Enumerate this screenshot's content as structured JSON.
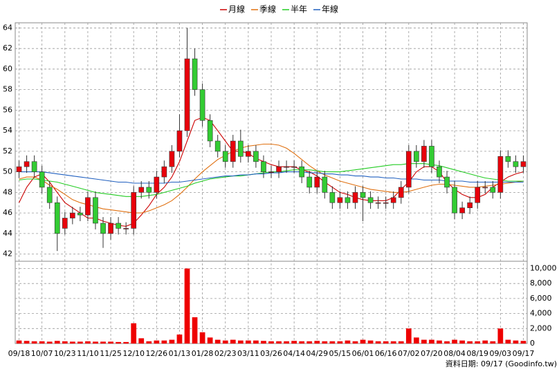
{
  "chart_data": {
    "type": "candlestick",
    "categories": [
      "09/18",
      null,
      null,
      "10/07",
      null,
      null,
      "10/23",
      null,
      null,
      "11/10",
      null,
      null,
      "11/25",
      null,
      null,
      "12/10",
      null,
      null,
      "12/26",
      null,
      null,
      "01/13",
      null,
      null,
      "01/28",
      null,
      null,
      "02/23",
      null,
      null,
      "03/11",
      null,
      null,
      "03/26",
      null,
      null,
      "04/14",
      null,
      null,
      "04/29",
      null,
      null,
      "05/15",
      null,
      null,
      "06/01",
      null,
      null,
      "06/16",
      null,
      null,
      "07/02",
      null,
      null,
      "07/20",
      null,
      null,
      "08/04",
      null,
      null,
      "08/19",
      null,
      null,
      "09/03",
      null,
      null,
      "09/17"
    ],
    "open": [
      50,
      50.5,
      51,
      50,
      48.5,
      47,
      44.5,
      45.5,
      46,
      45.8,
      47.5,
      45,
      44,
      45,
      44.5,
      44.5,
      48,
      48.5,
      48,
      49.5,
      50.5,
      52,
      54,
      61,
      58,
      55,
      53,
      52,
      51,
      53,
      51.5,
      52,
      51,
      50,
      50,
      50.5,
      50.5,
      50.5,
      49.5,
      48.5,
      49.5,
      48,
      47,
      47.5,
      47,
      48,
      47.5,
      47,
      47,
      47,
      47.5,
      48.5,
      52,
      51,
      52.5,
      50.5,
      49.5,
      48.5,
      46,
      46.5,
      47,
      48.5,
      48.5,
      48,
      51.5,
      51,
      50.5
    ],
    "high": [
      51.1,
      51.6,
      51.6,
      50.6,
      49.1,
      47.6,
      46.1,
      46.6,
      46.6,
      48.1,
      48.1,
      45.6,
      45.6,
      45.6,
      45.1,
      48.6,
      49.1,
      49.1,
      50.1,
      51.1,
      52.6,
      55.6,
      64,
      62,
      58.6,
      55.6,
      53.6,
      52.6,
      53.6,
      54.1,
      52.6,
      52.6,
      51.6,
      50.6,
      51.1,
      51.1,
      51.1,
      51.1,
      50.1,
      50.1,
      50.1,
      48.6,
      48.1,
      48.1,
      48.6,
      48.6,
      48.1,
      47.6,
      47.6,
      48.1,
      49.1,
      52.6,
      52.6,
      53.1,
      53.1,
      51.1,
      50.1,
      49.1,
      47.1,
      47.6,
      49.1,
      49.1,
      49.1,
      52.1,
      52.1,
      51.6,
      51.6
    ],
    "low": [
      49.4,
      49.9,
      49.4,
      47.9,
      46.4,
      42.3,
      43.9,
      44.9,
      45.2,
      45.2,
      44.4,
      42.6,
      43.4,
      43.9,
      43.9,
      43.9,
      47.4,
      47.4,
      47.4,
      48.9,
      49.9,
      51.4,
      53.4,
      57.4,
      54.4,
      52.4,
      51.4,
      50.4,
      50.4,
      50.9,
      50.9,
      50.4,
      49.4,
      49.4,
      49.4,
      49.9,
      49.9,
      48.9,
      47.9,
      47.9,
      47.4,
      46.4,
      46.4,
      46.4,
      46.4,
      45.2,
      46.4,
      46.4,
      46.4,
      46.4,
      46.9,
      47.9,
      50.4,
      50.4,
      49.9,
      48.9,
      47.9,
      45.4,
      45.4,
      45.9,
      46.4,
      47.9,
      47.4,
      47.4,
      50.4,
      49.9,
      49.9
    ],
    "close": [
      50.5,
      51,
      50,
      48.5,
      47,
      44,
      45.5,
      46,
      45.8,
      47.5,
      45,
      44,
      45,
      44.5,
      44.5,
      48,
      48.5,
      48,
      49.5,
      50.5,
      52,
      54,
      61,
      58,
      55,
      53,
      52,
      51,
      53,
      51.5,
      52,
      51,
      50,
      50,
      50.5,
      50.5,
      50.5,
      49.5,
      48.5,
      49.5,
      48,
      47,
      47.5,
      47,
      48,
      47.5,
      47,
      47,
      47,
      47.5,
      48.5,
      52,
      51,
      52.5,
      50.5,
      49.5,
      48.5,
      46,
      46.5,
      47,
      48.5,
      48.5,
      48,
      51.5,
      51,
      50.5,
      51
    ],
    "up_color": "#e8000b",
    "down_color": "#33cc33",
    "series": [
      {
        "name": "月線",
        "color": "#cc0000",
        "values": [
          47,
          48.5,
          49.5,
          49.8,
          49,
          48,
          47,
          46.5,
          46,
          45.5,
          45.5,
          45.2,
          45,
          44.8,
          44.7,
          45,
          45.8,
          46.7,
          47.8,
          48.5,
          49.5,
          51,
          53,
          55,
          55.3,
          55,
          54,
          53,
          52,
          52,
          51.8,
          51.3,
          51,
          50.7,
          50.5,
          50.5,
          50.5,
          50.2,
          50,
          49.6,
          49,
          48.5,
          48,
          47.8,
          47.5,
          47.3,
          47.2,
          47.2,
          47.2,
          47.5,
          48.3,
          49,
          50,
          50.5,
          50.5,
          50,
          49,
          48.3,
          47.8,
          47.5,
          47.5,
          47.8,
          48.5,
          49,
          49.5,
          49.8,
          50
        ]
      },
      {
        "name": "季線",
        "color": "#e07010",
        "values": [
          49.3,
          49.5,
          49.5,
          49.2,
          48.7,
          48.3,
          47.8,
          47.3,
          47,
          46.8,
          46.6,
          46.4,
          46.3,
          46.2,
          46.1,
          46,
          46,
          46.2,
          46.5,
          46.8,
          47.2,
          47.8,
          48.5,
          49.3,
          50,
          50.6,
          51.2,
          51.6,
          52,
          52.3,
          52.5,
          52.6,
          52.7,
          52.7,
          52.6,
          52.3,
          51.8,
          51.2,
          50.6,
          50.1,
          49.7,
          49.4,
          49.1,
          48.9,
          48.7,
          48.5,
          48.3,
          48.2,
          48.1,
          48,
          48,
          48.1,
          48.3,
          48.5,
          48.7,
          48.8,
          48.8,
          48.7,
          48.6,
          48.5,
          48.5,
          48.6,
          48.7,
          48.8,
          48.9,
          49,
          49.1
        ]
      },
      {
        "name": "半年",
        "color": "#22cc22",
        "values": [
          49.2,
          49.3,
          49.3,
          49.2,
          49.1,
          49,
          48.8,
          48.6,
          48.4,
          48.2,
          48,
          47.9,
          47.8,
          47.7,
          47.6,
          47.6,
          47.6,
          47.7,
          47.8,
          48,
          48.2,
          48.4,
          48.6,
          48.9,
          49.1,
          49.3,
          49.4,
          49.5,
          49.6,
          49.6,
          49.7,
          49.8,
          49.9,
          50,
          50,
          50.1,
          50.2,
          50.2,
          50.2,
          50.1,
          50,
          50,
          50,
          50.1,
          50.2,
          50.3,
          50.4,
          50.5,
          50.6,
          50.7,
          50.7,
          50.8,
          50.8,
          50.8,
          50.7,
          50.6,
          50.4,
          50.2,
          50,
          49.8,
          49.6,
          49.4,
          49.3,
          49.2,
          49.1,
          49.1,
          49.1
        ]
      },
      {
        "name": "年線",
        "color": "#1f5fbf",
        "values": [
          50,
          50,
          50,
          50,
          49.9,
          49.8,
          49.7,
          49.6,
          49.5,
          49.4,
          49.3,
          49.2,
          49.1,
          49,
          49,
          48.9,
          48.9,
          48.9,
          48.9,
          48.9,
          49,
          49,
          49.1,
          49.2,
          49.3,
          49.4,
          49.5,
          49.6,
          49.6,
          49.7,
          49.7,
          49.8,
          49.8,
          49.9,
          49.9,
          50,
          50,
          50,
          49.9,
          49.9,
          49.8,
          49.8,
          49.7,
          49.7,
          49.6,
          49.6,
          49.5,
          49.5,
          49.4,
          49.4,
          49.3,
          49.3,
          49.3,
          49.2,
          49.2,
          49.2,
          49.1,
          49.1,
          49.1,
          49,
          49,
          49,
          49,
          49,
          49,
          49,
          49
        ]
      }
    ],
    "ylim": [
      41.3,
      64.5
    ],
    "yticks": [
      42,
      44,
      46,
      48,
      50,
      52,
      54,
      56,
      58,
      60,
      62,
      64
    ],
    "grid": true,
    "volume": {
      "color": "#ee0000",
      "values": [
        400,
        350,
        300,
        300,
        250,
        350,
        300,
        250,
        250,
        300,
        250,
        250,
        250,
        200,
        200,
        2700,
        700,
        300,
        400,
        400,
        500,
        1200,
        10000,
        3500,
        1500,
        800,
        500,
        400,
        500,
        400,
        400,
        400,
        350,
        300,
        300,
        300,
        350,
        300,
        300,
        350,
        300,
        300,
        300,
        400,
        300,
        500,
        400,
        300,
        300,
        300,
        300,
        2000,
        800,
        500,
        500,
        400,
        300,
        500,
        400,
        300,
        300,
        400,
        300,
        2000,
        500,
        400,
        350
      ],
      "ylim": [
        0,
        10600
      ],
      "yticks": [
        0,
        {
          "value": 2000,
          "label": "2,000"
        },
        {
          "value": 4000,
          "label": "4,000"
        },
        {
          "value": 6000,
          "label": "6,000"
        },
        {
          "value": 8000,
          "label": "8,000"
        },
        {
          "value": 10000,
          "label": "10,000"
        }
      ]
    },
    "source": "資料日期: 09/17  (Goodinfo.tw)"
  }
}
